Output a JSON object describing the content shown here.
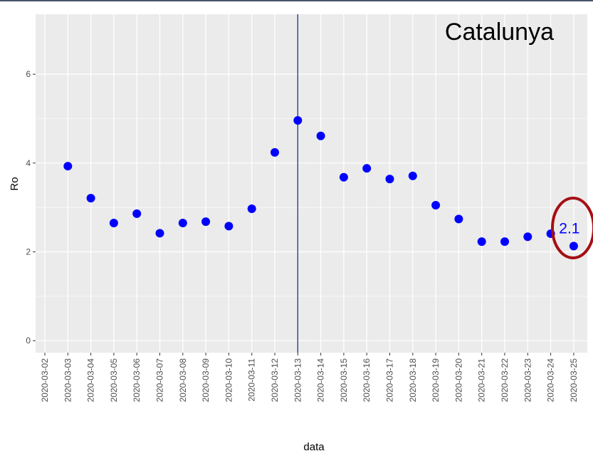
{
  "chart_data": {
    "type": "scatter",
    "title": "Catalunya",
    "x_label": "data",
    "y_label": "Ro",
    "categories": [
      "2020-03-02",
      "2020-03-03",
      "2020-03-04",
      "2020-03-05",
      "2020-03-06",
      "2020-03-07",
      "2020-03-08",
      "2020-03-09",
      "2020-03-10",
      "2020-03-11",
      "2020-03-12",
      "2020-03-13",
      "2020-03-14",
      "2020-03-15",
      "2020-03-16",
      "2020-03-17",
      "2020-03-18",
      "2020-03-19",
      "2020-03-20",
      "2020-03-21",
      "2020-03-22",
      "2020-03-23",
      "2020-03-24",
      "2020-03-25"
    ],
    "values": [
      null,
      3.93,
      3.21,
      2.65,
      2.86,
      2.42,
      2.65,
      2.68,
      2.58,
      2.97,
      4.24,
      4.96,
      4.61,
      3.68,
      3.88,
      3.64,
      3.71,
      3.05,
      2.74,
      2.23,
      2.23,
      2.34,
      2.41,
      2.13
    ],
    "color": "#0000ff",
    "vline": "2020-03-13",
    "vline_color": "#1f2f8f",
    "annotation": {
      "text": "2.1",
      "category": "2020-03-25"
    },
    "ylim": [
      -0.27,
      7.35
    ],
    "yticks": [
      0,
      2,
      4,
      6
    ],
    "grid": true
  }
}
